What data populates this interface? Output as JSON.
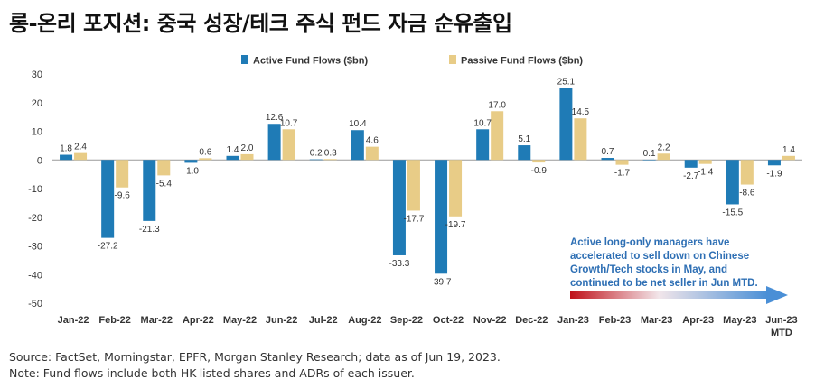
{
  "title": "롱-온리 포지션: 중국 성장/테크 주식 펀드 자금 순유출입",
  "chart_data": {
    "type": "bar",
    "title": "롱-온리 포지션: 중국 성장/테크 주식 펀드 자금 순유출입",
    "categories": [
      "Jan-22",
      "Feb-22",
      "Mar-22",
      "Apr-22",
      "May-22",
      "Jun-22",
      "Jul-22",
      "Aug-22",
      "Sep-22",
      "Oct-22",
      "Nov-22",
      "Dec-22",
      "Jan-23",
      "Feb-23",
      "Mar-23",
      "Apr-23",
      "May-23",
      "Jun-23 MTD"
    ],
    "series": [
      {
        "name": "Active Fund Flows ($bn)",
        "color": "#1f7bb6",
        "values": [
          1.8,
          -27.2,
          -21.3,
          -1.0,
          1.4,
          12.6,
          0.2,
          10.4,
          -33.3,
          -39.7,
          10.7,
          5.1,
          25.1,
          0.7,
          0.1,
          -2.7,
          -15.5,
          -1.9
        ]
      },
      {
        "name": "Passive Fund Flows ($bn)",
        "color": "#e8cc87",
        "values": [
          2.4,
          -9.6,
          -5.4,
          0.6,
          2.0,
          10.7,
          0.3,
          4.6,
          -17.7,
          -19.7,
          17.0,
          -0.9,
          14.5,
          -1.7,
          2.2,
          -1.4,
          -8.6,
          1.4
        ]
      }
    ],
    "value_labels": {
      "active": [
        "1.8",
        "-27.2",
        "-21.3",
        "-1.0",
        "1.4",
        "12.6",
        "0.2",
        "10.4",
        "-33.3",
        "-39.7",
        "10.7",
        "5.1",
        "25.1",
        "0.7",
        "0.1",
        "-2.7",
        "-15.5",
        "-1.9"
      ],
      "passive": [
        "2.4",
        "-9.6",
        "-5.4",
        "0.6",
        "2.0",
        "10.7",
        "0.3",
        "4.6",
        "-17.7",
        "-19.7",
        "17.0",
        "-0.9",
        "14.5",
        "-1.7",
        "2.2",
        "-1.4",
        "-8.6",
        "1.4"
      ]
    },
    "ylim": [
      -50,
      30
    ],
    "yticks": [
      30,
      20,
      10,
      0,
      -10,
      -20,
      -30,
      -40,
      -50
    ],
    "legend_position": "top-center",
    "annotation": "Active long-only managers have accelerated to sell down on Chinese Growth/Tech stocks in May, and continued to be net seller in Jun MTD."
  },
  "annotation_lines": [
    "Active long-only managers have",
    "accelerated to sell down on Chinese",
    "Growth/Tech stocks in May, and",
    "continued to be net seller in Jun MTD."
  ],
  "colors": {
    "active": "#1f7bb6",
    "passive": "#e8cc87",
    "annotation_text": "#2e6fb4",
    "arrow_start": "#c0121a",
    "arrow_end": "#4a8fd6"
  },
  "source": "Source: FactSet, Morningstar, EPFR, Morgan Stanley Research; data as of Jun 19, 2023.",
  "note": "Note: Fund flows include both HK-listed shares and ADRs of each issuer."
}
